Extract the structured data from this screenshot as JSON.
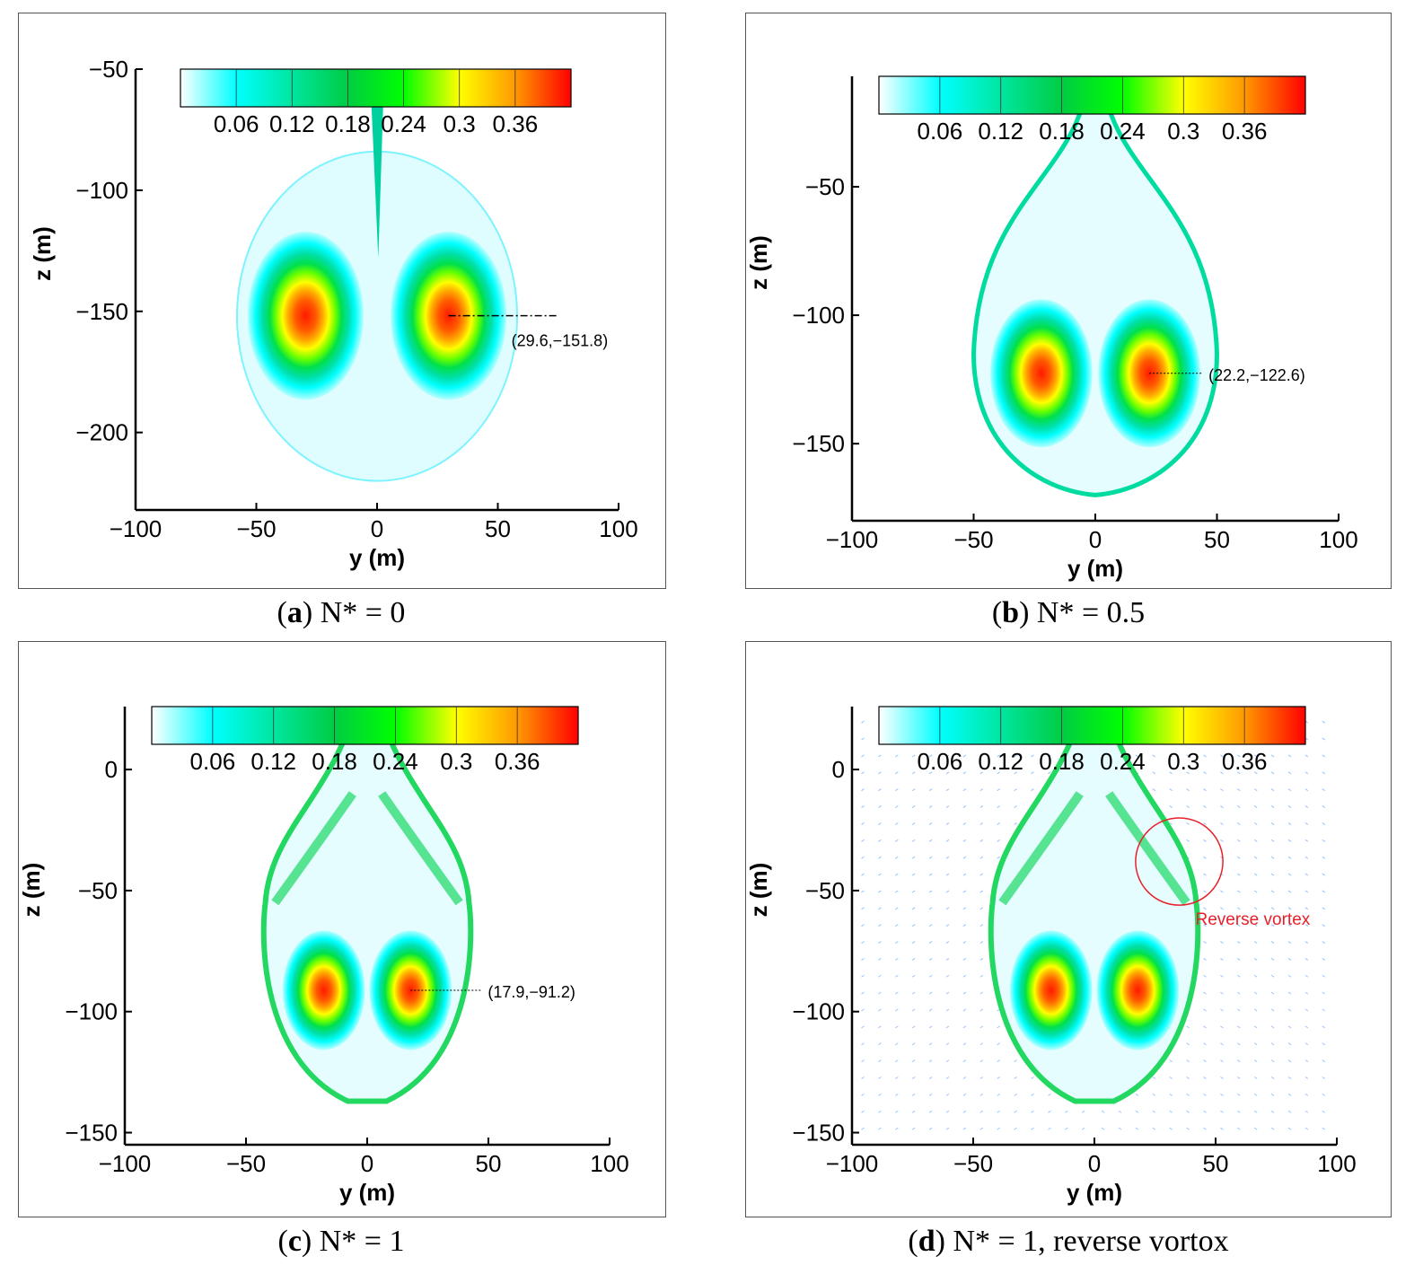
{
  "colorbar": {
    "ticks": [
      "0.06",
      "0.12",
      "0.18",
      "0.24",
      "0.3",
      "0.36"
    ],
    "colors": [
      "#ffffff",
      "#00ffff",
      "#00e6a0",
      "#00cc44",
      "#00ff00",
      "#ffff00",
      "#ff9900",
      "#ff0000"
    ]
  },
  "chart_data": [
    {
      "type": "heatmap",
      "panel": "a",
      "caption": {
        "letter": "a",
        "text": "N* = 0"
      },
      "xlabel": "y (m)",
      "ylabel": "z (m)",
      "xlim": [
        -100,
        100
      ],
      "ylim": [
        -232,
        -50
      ],
      "xticks": [
        "−100",
        "−50",
        "0",
        "50",
        "100"
      ],
      "yticks": [
        "−50",
        "−100",
        "−150",
        "−200"
      ],
      "ytick_values": [
        -50,
        -100,
        -150,
        -200
      ],
      "vortex_core": {
        "y": 29.6,
        "z": -151.8,
        "label": "(29.6,−151.8)"
      },
      "annotation": null
    },
    {
      "type": "heatmap",
      "panel": "b",
      "caption": {
        "letter": "b",
        "text": "N* = 0.5"
      },
      "xlabel": "y (m)",
      "ylabel": "z (m)",
      "xlim": [
        -100,
        100
      ],
      "ylim": [
        -180,
        -7
      ],
      "xticks": [
        "−100",
        "−50",
        "0",
        "50",
        "100"
      ],
      "yticks": [
        "−50",
        "−100",
        "−150"
      ],
      "ytick_values": [
        -50,
        -100,
        -150
      ],
      "vortex_core": {
        "y": 22.2,
        "z": -122.6,
        "label": "(22.2,−122.6)"
      },
      "annotation": null
    },
    {
      "type": "heatmap",
      "panel": "c",
      "caption": {
        "letter": "c",
        "text": "N* = 1"
      },
      "xlabel": "y (m)",
      "ylabel": "z (m)",
      "xlim": [
        -100,
        100
      ],
      "ylim": [
        -155,
        26
      ],
      "xticks": [
        "−100",
        "−50",
        "0",
        "50",
        "100"
      ],
      "yticks": [
        "0",
        "−50",
        "−100",
        "−150"
      ],
      "ytick_values": [
        0,
        -50,
        -100,
        -150
      ],
      "vortex_core": {
        "y": 17.9,
        "z": -91.2,
        "label": "(17.9,−91.2)"
      },
      "annotation": null
    },
    {
      "type": "heatmap",
      "panel": "d",
      "caption": {
        "letter": "d",
        "text": "N* = 1, reverse vortox"
      },
      "xlabel": "y (m)",
      "ylabel": "z (m)",
      "xlim": [
        -100,
        100
      ],
      "ylim": [
        -155,
        26
      ],
      "xticks": [
        "−100",
        "−50",
        "0",
        "50",
        "100"
      ],
      "yticks": [
        "0",
        "−50",
        "−100",
        "−150"
      ],
      "ytick_values": [
        0,
        -50,
        -100,
        -150
      ],
      "vortex_core": null,
      "annotation": {
        "text": "Reverse vortex",
        "y": 35,
        "z": -38,
        "radius_m": 18,
        "color": "#e8202a"
      },
      "vectors": true
    }
  ]
}
